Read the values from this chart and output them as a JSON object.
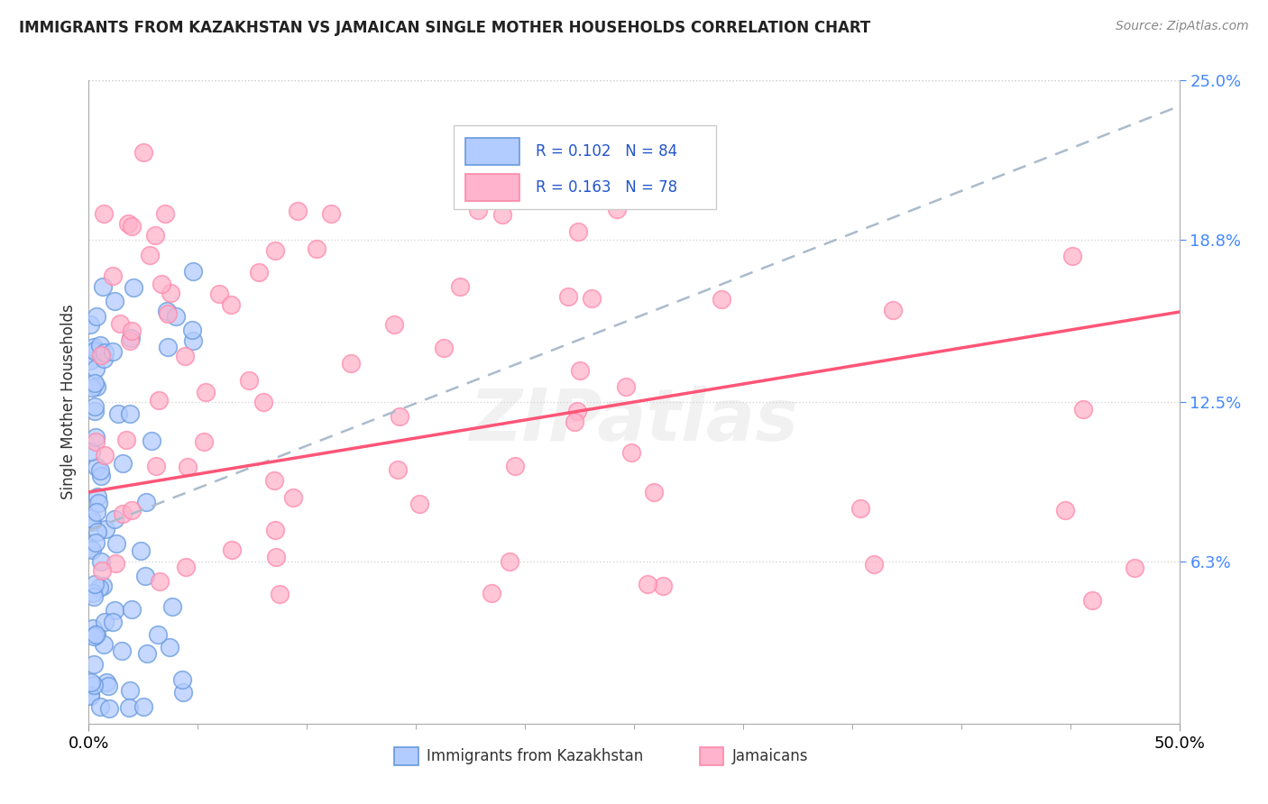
{
  "title": "IMMIGRANTS FROM KAZAKHSTAN VS JAMAICAN SINGLE MOTHER HOUSEHOLDS CORRELATION CHART",
  "source": "Source: ZipAtlas.com",
  "ylabel": "Single Mother Households",
  "xlim": [
    0.0,
    0.5
  ],
  "ylim": [
    0.0,
    0.25
  ],
  "xtick_positions": [
    0.0,
    0.5
  ],
  "xtick_labels": [
    "0.0%",
    "50.0%"
  ],
  "ytick_right_labels": [
    "6.3%",
    "12.5%",
    "18.8%",
    "25.0%"
  ],
  "ytick_right_values": [
    0.063,
    0.125,
    0.188,
    0.25
  ],
  "watermark": "ZIPatlas",
  "kaz_color_face": "#b3ccff",
  "kaz_color_edge": "#6699dd",
  "jam_color_face": "#ffb3cc",
  "jam_color_edge": "#ff88aa",
  "kaz_trend_color": "#aabbcc",
  "jam_trend_color": "#ff5577",
  "kaz_trend_intercept": 0.0,
  "kaz_trend_slope": 0.5,
  "jam_trend_intercept": 0.09,
  "jam_trend_slope": 0.07,
  "legend_R1": "R = 0.102",
  "legend_N1": "N = 84",
  "legend_R2": "R = 0.163",
  "legend_N2": "N = 78",
  "legend_text_color": "#2255cc",
  "bottom_legend_kaz": "Immigrants from Kazakhstan",
  "bottom_legend_jam": "Jamaicans",
  "grid_color": "#cccccc",
  "grid_style": "dotted"
}
